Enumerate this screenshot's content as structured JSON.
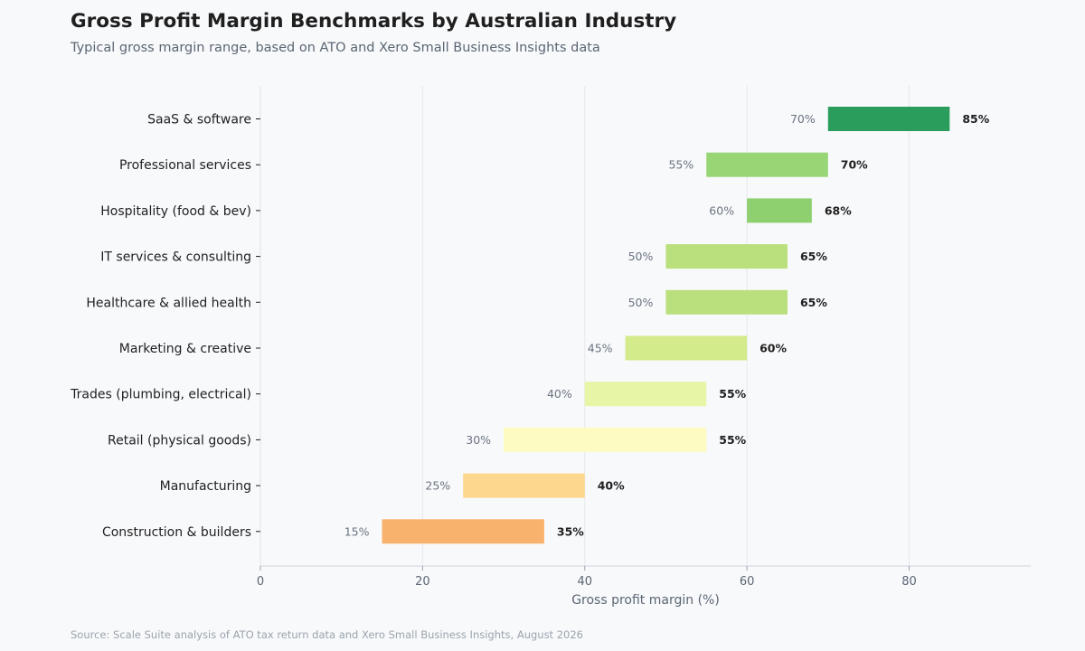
{
  "header": {
    "title": "Gross Profit Margin Benchmarks by Australian Industry",
    "subtitle": "Typical gross margin range, based on ATO and Xero Small Business Insights data"
  },
  "footer": {
    "source": "Source: Scale Suite analysis of ATO tax return data and Xero Small Business Insights, August 2026"
  },
  "chart_data": {
    "type": "bar",
    "orientation": "horizontal-range",
    "title": "Gross Profit Margin Benchmarks by Australian Industry",
    "subtitle": "Typical gross margin range, based on ATO and Xero Small Business Insights data",
    "xlabel": "Gross profit margin (%)",
    "ylabel": "",
    "xlim": [
      0,
      95
    ],
    "x_ticks": [
      0,
      20,
      40,
      60,
      80
    ],
    "grid": "vertical",
    "categories": [
      "SaaS & software",
      "Professional services",
      "Hospitality (food & bev)",
      "IT services & consulting",
      "Healthcare & allied health",
      "Marketing & creative",
      "Trades (plumbing, electrical)",
      "Retail (physical goods)",
      "Manufacturing",
      "Construction & builders"
    ],
    "low": [
      70,
      55,
      60,
      50,
      50,
      45,
      40,
      30,
      25,
      15
    ],
    "high": [
      85,
      70,
      68,
      65,
      65,
      60,
      55,
      55,
      40,
      35
    ],
    "low_labels": [
      "70%",
      "55%",
      "60%",
      "50%",
      "50%",
      "45%",
      "40%",
      "30%",
      "25%",
      "15%"
    ],
    "high_labels": [
      "85%",
      "70%",
      "68%",
      "65%",
      "65%",
      "60%",
      "55%",
      "55%",
      "40%",
      "35%"
    ],
    "colors": [
      "#2a9d5c",
      "#98d574",
      "#8ecf70",
      "#b9e07c",
      "#b9e07c",
      "#d3eb8a",
      "#e6f5a6",
      "#fdfbc2",
      "#fdd78d",
      "#f9b26d"
    ]
  }
}
